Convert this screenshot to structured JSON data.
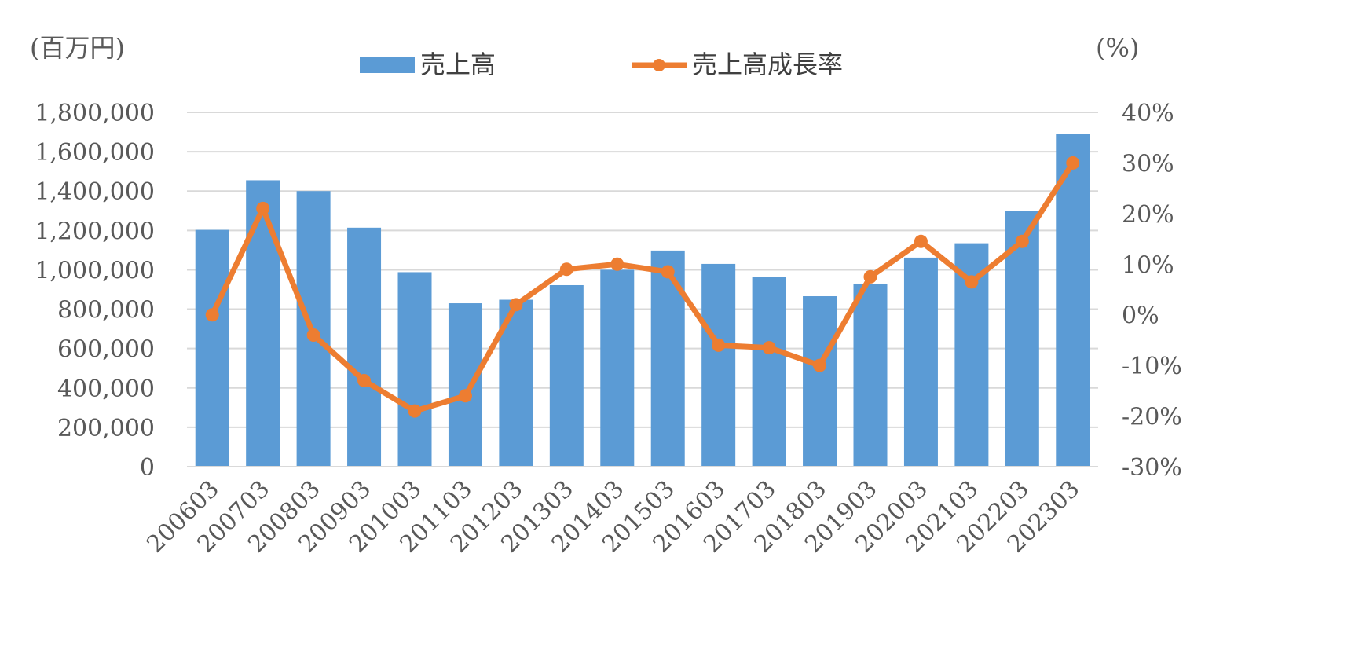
{
  "chart_data": {
    "type": "bar",
    "categories": [
      "200603",
      "200703",
      "200803",
      "200903",
      "201003",
      "201103",
      "201203",
      "201303",
      "201403",
      "201503",
      "201603",
      "201703",
      "201803",
      "201903",
      "202003",
      "202103",
      "202203",
      "202303"
    ],
    "series": [
      {
        "name": "売上高",
        "type": "bar",
        "axis": "left",
        "color": "#5B9BD5",
        "values": [
          1203000,
          1455000,
          1400000,
          1214000,
          988000,
          830000,
          848000,
          922000,
          1000000,
          1098000,
          1030000,
          962000,
          866000,
          930000,
          1062000,
          1135000,
          1300000,
          1692000
        ]
      },
      {
        "name": "売上高成長率",
        "type": "line",
        "axis": "right",
        "color": "#ED7D31",
        "values": [
          0.0,
          21.0,
          -4.0,
          -13.0,
          -19.0,
          -16.0,
          2.0,
          9.0,
          10.0,
          8.5,
          -6.0,
          -6.5,
          -10.0,
          7.5,
          14.5,
          6.5,
          14.5,
          30.0
        ]
      }
    ],
    "y_left": {
      "unit_label": "(百万円)",
      "ylim": [
        0,
        1800000
      ],
      "ticks": [
        "0",
        "200,000",
        "400,000",
        "600,000",
        "800,000",
        "1,000,000",
        "1,200,000",
        "1,400,000",
        "1,600,000",
        "1,800,000"
      ]
    },
    "y_right": {
      "unit_label": "(%)",
      "ylim": [
        -30,
        40
      ],
      "ticks": [
        "-30%",
        "-20%",
        "-10%",
        "0%",
        "10%",
        "20%",
        "30%",
        "40%"
      ]
    },
    "grid": true,
    "legend_position": "top-center",
    "title": "",
    "xlabel": "",
    "ylabel": ""
  }
}
